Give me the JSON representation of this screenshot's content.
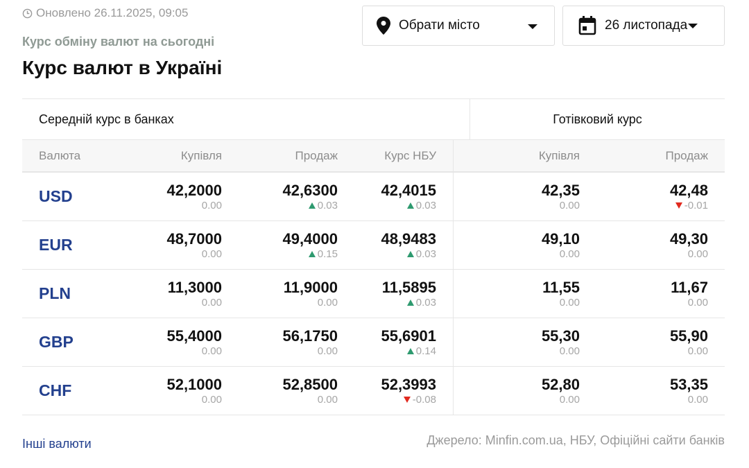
{
  "header": {
    "updated": "Оновлено 26.11.2025, 09:05",
    "subtitle": "Курс обміну валют на сьогодні",
    "title": "Курс валют в Україні",
    "city_select": "Обрати місто",
    "date_select": "26 листопада"
  },
  "table": {
    "group_banks": "Середній курс в банках",
    "group_cash": "Готівковий курс",
    "columns": [
      "Валюта",
      "Купівля",
      "Продаж",
      "Курс НБУ",
      "Купівля",
      "Продаж"
    ],
    "rows": [
      {
        "currency": "USD",
        "cells": [
          {
            "value": "42,2000",
            "change": "0.00",
            "dir": null
          },
          {
            "value": "42,6300",
            "change": "0.03",
            "dir": "up"
          },
          {
            "value": "42,4015",
            "change": "0.03",
            "dir": "up"
          },
          {
            "value": "42,35",
            "change": "0.00",
            "dir": null
          },
          {
            "value": "42,48",
            "change": "-0.01",
            "dir": "down"
          }
        ]
      },
      {
        "currency": "EUR",
        "cells": [
          {
            "value": "48,7000",
            "change": "0.00",
            "dir": null
          },
          {
            "value": "49,4000",
            "change": "0.15",
            "dir": "up"
          },
          {
            "value": "48,9483",
            "change": "0.03",
            "dir": "up"
          },
          {
            "value": "49,10",
            "change": "0.00",
            "dir": null
          },
          {
            "value": "49,30",
            "change": "0.00",
            "dir": null
          }
        ]
      },
      {
        "currency": "PLN",
        "cells": [
          {
            "value": "11,3000",
            "change": "0.00",
            "dir": null
          },
          {
            "value": "11,9000",
            "change": "0.00",
            "dir": null
          },
          {
            "value": "11,5895",
            "change": "0.03",
            "dir": "up"
          },
          {
            "value": "11,55",
            "change": "0.00",
            "dir": null
          },
          {
            "value": "11,67",
            "change": "0.00",
            "dir": null
          }
        ]
      },
      {
        "currency": "GBP",
        "cells": [
          {
            "value": "55,4000",
            "change": "0.00",
            "dir": null
          },
          {
            "value": "56,1750",
            "change": "0.00",
            "dir": null
          },
          {
            "value": "55,6901",
            "change": "0.14",
            "dir": "up"
          },
          {
            "value": "55,30",
            "change": "0.00",
            "dir": null
          },
          {
            "value": "55,90",
            "change": "0.00",
            "dir": null
          }
        ]
      },
      {
        "currency": "CHF",
        "cells": [
          {
            "value": "52,1000",
            "change": "0.00",
            "dir": null
          },
          {
            "value": "52,8500",
            "change": "0.00",
            "dir": null
          },
          {
            "value": "52,3993",
            "change": "-0.08",
            "dir": "down"
          },
          {
            "value": "52,80",
            "change": "0.00",
            "dir": null
          },
          {
            "value": "53,35",
            "change": "0.00",
            "dir": null
          }
        ]
      }
    ]
  },
  "footer": {
    "other_currencies": "Інші валюти",
    "source": "Джерело: Minfin.com.ua, НБУ, Офіційні сайти банків"
  },
  "colors": {
    "currency_link": "#23408e",
    "up": "#2e9a6f",
    "down": "#e12a1f",
    "muted": "#9a9a9a"
  }
}
